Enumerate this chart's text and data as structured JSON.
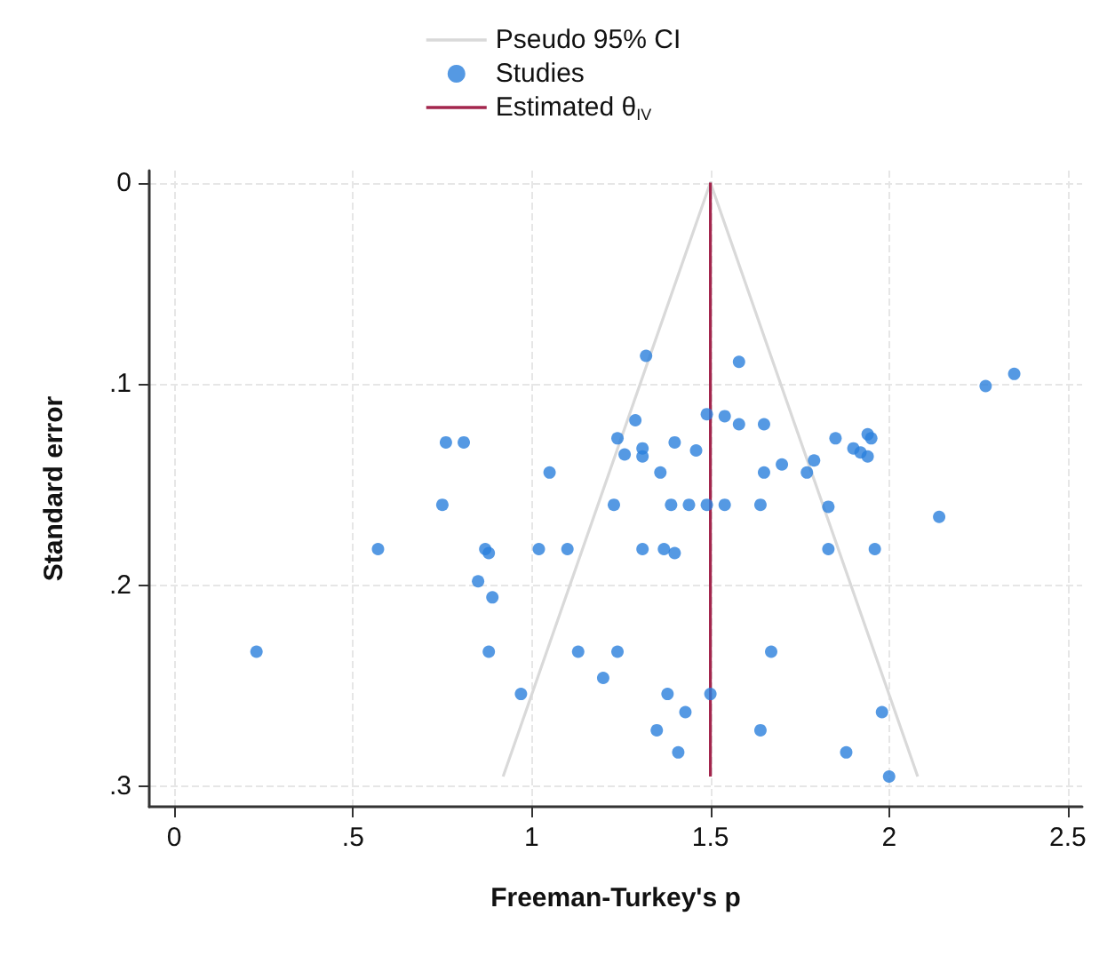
{
  "chart_data": {
    "type": "scatter",
    "xlabel": "Freeman-Turkey's p",
    "ylabel": "Standard error",
    "xlim": [
      -0.07,
      2.54
    ],
    "ylim": [
      0.31,
      -0.006
    ],
    "xticks": [
      0,
      {
        "value": 0.5,
        "label": ".5"
      },
      1,
      1.5,
      2,
      2.5
    ],
    "yticks": [
      0,
      {
        "value": 0.1,
        "label": ".1"
      },
      {
        "value": 0.2,
        "label": ".2"
      },
      {
        "value": 0.3,
        "label": ".3"
      }
    ],
    "grid": true,
    "legend": "top",
    "marker": "circle",
    "series": [
      {
        "name": "Pseudo 95% CI",
        "type": "line",
        "color": "#d9d9d9",
        "line_style": "solid",
        "marker": "none",
        "x": [
          0.92,
          1.5,
          2.08
        ],
        "values": [
          0.295,
          0,
          0.295
        ]
      },
      {
        "name": "Studies",
        "color": "#2a7fdc",
        "x": [
          0.76,
          0.81,
          1.05,
          1.24,
          1.26,
          1.32,
          1.58,
          2.27,
          2.35,
          1.29,
          1.49,
          1.54,
          1.58,
          1.65,
          1.31,
          1.31,
          1.4,
          1.46,
          1.36,
          1.65,
          1.7,
          1.77,
          1.79,
          1.85,
          1.9,
          1.92,
          1.94,
          1.94,
          1.95,
          0.75,
          1.23,
          0.57,
          0.87,
          0.88,
          1.02,
          1.1,
          0.85,
          0.89,
          0.23,
          0.88,
          1.13,
          1.24,
          1.2,
          0.97,
          1.39,
          1.44,
          1.49,
          1.54,
          1.64,
          1.83,
          2.14,
          1.31,
          1.37,
          1.4,
          1.83,
          1.96,
          1.67,
          1.38,
          1.5,
          1.43,
          1.98,
          1.35,
          1.64,
          1.41,
          1.88,
          2.0
        ],
        "values": [
          0.129,
          0.129,
          0.144,
          0.127,
          0.135,
          0.086,
          0.089,
          0.101,
          0.095,
          0.118,
          0.115,
          0.116,
          0.12,
          0.12,
          0.132,
          0.136,
          0.129,
          0.133,
          0.144,
          0.144,
          0.14,
          0.144,
          0.138,
          0.127,
          0.132,
          0.134,
          0.136,
          0.125,
          0.127,
          0.16,
          0.16,
          0.182,
          0.182,
          0.184,
          0.182,
          0.182,
          0.198,
          0.206,
          0.233,
          0.233,
          0.233,
          0.233,
          0.246,
          0.254,
          0.16,
          0.16,
          0.16,
          0.16,
          0.16,
          0.161,
          0.166,
          0.182,
          0.182,
          0.184,
          0.182,
          0.182,
          0.233,
          0.254,
          0.254,
          0.263,
          0.263,
          0.272,
          0.272,
          0.283,
          0.283,
          0.295
        ]
      },
      {
        "name": "Estimated θ$_{IV}$",
        "type": "line",
        "color": "#a3264d",
        "line_style": "solid",
        "marker": "none",
        "x": [
          1.5,
          1.5
        ],
        "values": [
          0,
          0.295
        ]
      }
    ]
  }
}
